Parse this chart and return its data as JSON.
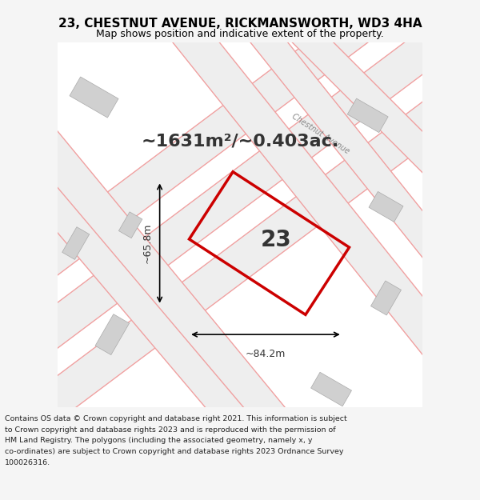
{
  "title": "23, CHESTNUT AVENUE, RICKMANSWORTH, WD3 4HA",
  "subtitle": "Map shows position and indicative extent of the property.",
  "area_text": "~1631m²/~0.403ac.",
  "property_label": "23",
  "dim_horizontal": "~84.2m",
  "dim_vertical": "~65.8m",
  "street_label": "Chestnut Avenue",
  "copyright_text": "Contains OS data © Crown copyright and database right 2021. This information is subject to Crown copyright and database rights 2023 and is reproduced with the permission of HM Land Registry. The polygons (including the associated geometry, namely x, y co-ordinates) are subject to Crown copyright and database rights 2023 Ordnance Survey 100026316.",
  "bg_color": "#f5f5f5",
  "map_bg": "#ffffff",
  "road_color": "#f0a0a0",
  "road_fill": "#e8e8e8",
  "property_edge_color": "#cc0000",
  "property_fill": "none",
  "title_color": "#000000",
  "text_color": "#000000"
}
